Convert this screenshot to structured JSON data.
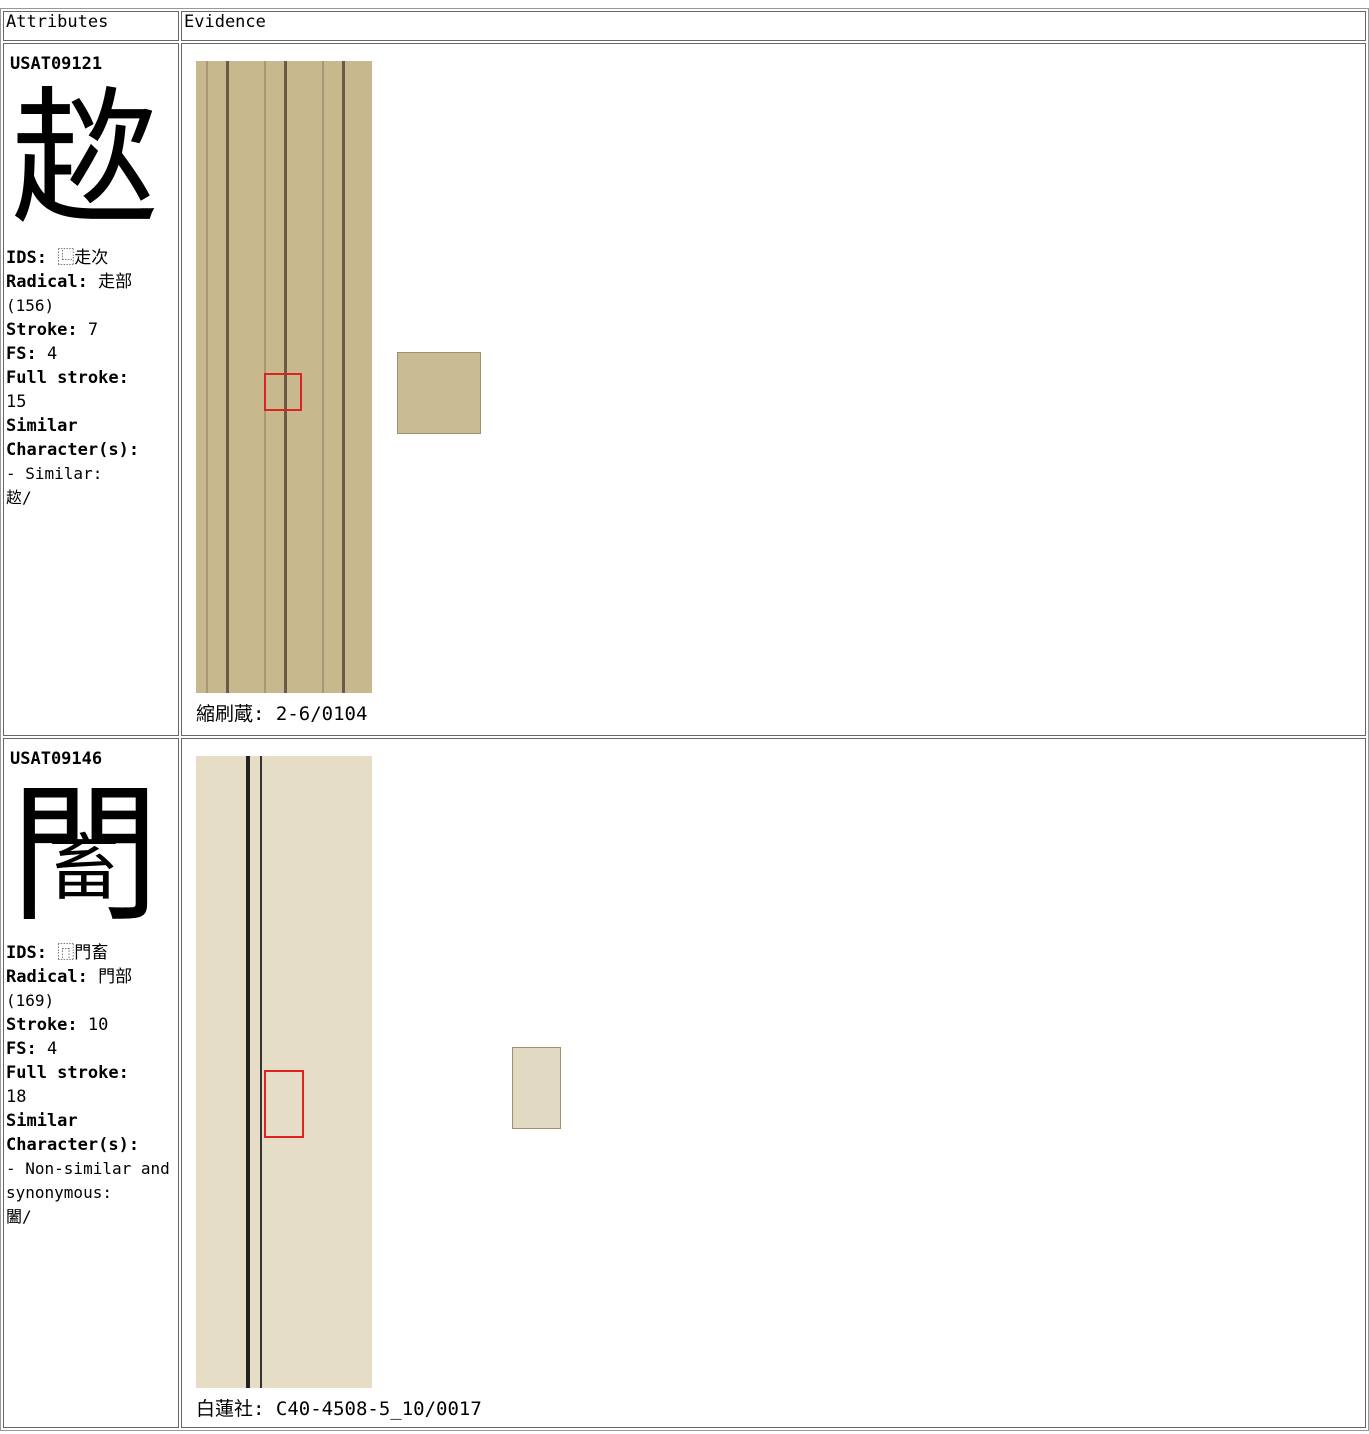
{
  "table": {
    "header": [
      "Attributes",
      "Evidence"
    ],
    "rows": [
      {
        "id": "USAT09121",
        "glyph": "趑",
        "ids_label": "IDS:",
        "ids": "⿺走次",
        "radical_label": "Radical:",
        "radical": "走部",
        "radical_num": "(156)",
        "stroke_label": "Stroke:",
        "stroke": "7",
        "fs_label": "FS:",
        "fs": "4",
        "full_label": "Full stroke:",
        "full": "15",
        "similar_label": "Similar Character(s):",
        "similar_kind": "- Similar:",
        "similar_chars": "趑/",
        "caption": "縮刷蔵: 2-6/0104"
      },
      {
        "id": "USAT09146",
        "glyph_frame": "門",
        "glyph_inner": "畜",
        "ids_label": "IDS:",
        "ids": "⿵門畜",
        "radical_label": "Radical:",
        "radical": "門部",
        "radical_num": "(169)",
        "stroke_label": "Stroke:",
        "stroke": "10",
        "fs_label": "FS:",
        "fs": "4",
        "full_label": "Full stroke:",
        "full": "18",
        "similar_label": "Similar Character(s):",
        "similar_kind": "- Non-similar and synonymous:",
        "similar_chars": "闔/",
        "caption": "白蓮社: C40-4508-5_10/0017"
      }
    ]
  }
}
